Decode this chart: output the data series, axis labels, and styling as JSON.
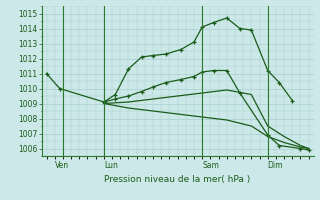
{
  "title": "Pression niveau de la mer( hPa )",
  "bg_color": "#cce8e8",
  "grid_color": "#aacece",
  "line_color": "#1a5c1a",
  "spine_color": "#2d7a2d",
  "ylim": [
    1005.5,
    1015.5
  ],
  "yticks": [
    1006,
    1007,
    1008,
    1009,
    1010,
    1011,
    1012,
    1013,
    1014,
    1015
  ],
  "xlim": [
    -0.3,
    16.3
  ],
  "day_labels": [
    "Ven",
    "Lun",
    "Sam",
    "Dim"
  ],
  "day_positions": [
    0.5,
    3.5,
    9.5,
    13.5
  ],
  "vline_positions": [
    1.0,
    3.5,
    9.5,
    13.5
  ],
  "lines": [
    {
      "x": [
        0.0,
        0.8,
        3.5,
        4.2,
        5.0,
        5.8,
        6.5,
        7.3,
        8.2,
        9.0,
        9.5,
        10.2,
        11.0,
        11.8,
        12.5,
        13.5,
        14.2,
        15.0
      ],
      "y": [
        1011.0,
        1010.0,
        1009.1,
        1009.6,
        1011.3,
        1012.1,
        1012.2,
        1012.3,
        1012.6,
        1013.1,
        1014.1,
        1014.4,
        1014.7,
        1014.0,
        1013.9,
        1011.2,
        1010.4,
        1009.2
      ],
      "marker": "+"
    },
    {
      "x": [
        3.5,
        4.2,
        5.0,
        5.8,
        6.5,
        7.3,
        8.2,
        9.0,
        9.5,
        10.2,
        11.0,
        11.8,
        13.5,
        14.2,
        15.5,
        16.0
      ],
      "y": [
        1009.1,
        1009.3,
        1009.5,
        1009.8,
        1010.1,
        1010.4,
        1010.6,
        1010.8,
        1011.1,
        1011.2,
        1011.2,
        1009.7,
        1006.9,
        1006.2,
        1006.0,
        1005.9
      ],
      "marker": "+"
    },
    {
      "x": [
        3.5,
        5.0,
        6.5,
        8.0,
        9.5,
        11.0,
        12.5,
        13.5,
        14.5,
        15.5,
        16.0
      ],
      "y": [
        1009.0,
        1009.1,
        1009.3,
        1009.5,
        1009.7,
        1009.9,
        1009.6,
        1007.5,
        1006.8,
        1006.2,
        1006.0
      ],
      "marker": null
    },
    {
      "x": [
        3.5,
        5.0,
        6.5,
        8.0,
        9.5,
        11.0,
        12.5,
        13.5,
        14.5,
        15.5,
        16.0
      ],
      "y": [
        1009.0,
        1008.7,
        1008.5,
        1008.3,
        1008.1,
        1007.9,
        1007.5,
        1006.8,
        1006.4,
        1006.1,
        1006.0
      ],
      "marker": null
    }
  ]
}
